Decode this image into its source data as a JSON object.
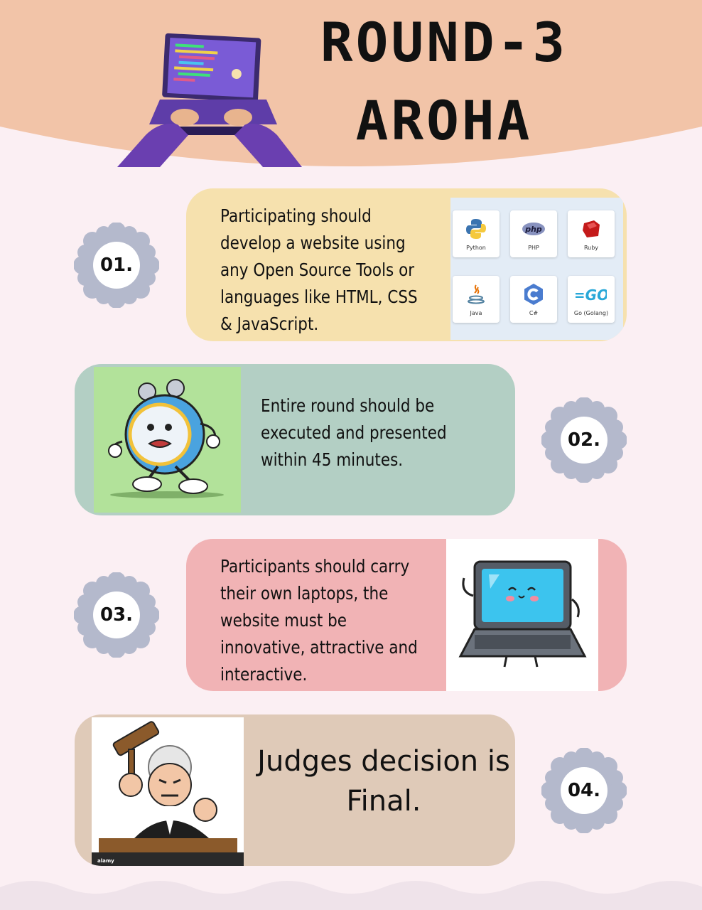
{
  "header": {
    "title_line1": "ROUND-3",
    "title_line2": "AROHA"
  },
  "steps": [
    {
      "number": "01.",
      "text": "Participating should develop a website using any Open Source Tools or languages like HTML, CSS & JavaScript."
    },
    {
      "number": "02.",
      "text": "Entire round should be executed and presented within 45 minutes."
    },
    {
      "number": "03.",
      "text": "Participants should carry their own laptops, the website must be innovative, attractive and interactive."
    },
    {
      "number": "04.",
      "text": "Judges decision is Final."
    }
  ],
  "languages": [
    {
      "name": "Python",
      "icon": "python-icon"
    },
    {
      "name": "PHP",
      "icon": "php-icon"
    },
    {
      "name": "Ruby",
      "icon": "ruby-icon"
    },
    {
      "name": "Java",
      "icon": "java-icon"
    },
    {
      "name": "C#",
      "icon": "csharp-icon"
    },
    {
      "name": "Go (Golang)",
      "icon": "go-icon"
    }
  ],
  "logo_texts": {
    "php": "php",
    "go": "=GO"
  },
  "watermark": "alamy",
  "colors": {
    "page_bg": "#fbeff3",
    "header_bg": "#f2c4a8",
    "card1": "#f6e1ae",
    "card2": "#b3cfc4",
    "card3": "#f1b3b5",
    "card4": "#dfcab8",
    "gear": "#b4b9cc"
  }
}
